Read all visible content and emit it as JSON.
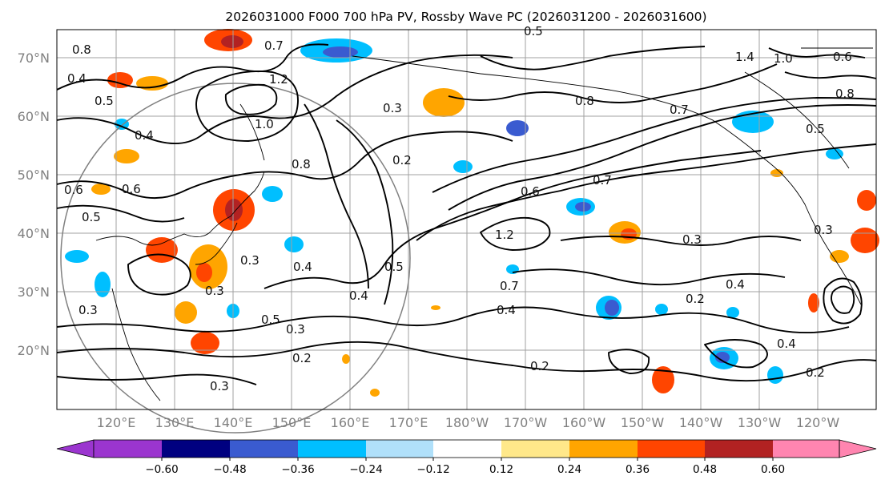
{
  "title": "2026031000 F000 700 hPa PV, Rossby Wave PC (2026031200 - 2026031600)",
  "lat_labels": [
    "70°N",
    "60°N",
    "50°N",
    "40°N",
    "30°N",
    "20°N"
  ],
  "lon_labels": [
    "120°E",
    "130°E",
    "140°E",
    "150°E",
    "160°E",
    "170°E",
    "180°W",
    "170°W",
    "160°W",
    "150°W",
    "140°W",
    "130°W",
    "120°W"
  ],
  "colorbar": {
    "ticks": [
      "−0.60",
      "−0.48",
      "−0.36",
      "−0.24",
      "−0.12",
      "0.12",
      "0.24",
      "0.36",
      "0.48",
      "0.60"
    ],
    "colors": [
      "#9b35cf",
      "#000080",
      "#3a5bd0",
      "#00bfff",
      "#b0e0fa",
      "#ffffff",
      "#ffe88a",
      "#ffa500",
      "#ff4500",
      "#b22222",
      "#ff85b0"
    ]
  },
  "contour_labels": [
    "0.8",
    "0.4",
    "0.5",
    "0.6",
    "0.4",
    "0.5",
    "0.6",
    "1.0",
    "1.2",
    "0.7",
    "0.8",
    "0.3",
    "0.2",
    "0.3",
    "0.4",
    "0.5",
    "0.3",
    "0.4",
    "0.5",
    "0.3",
    "0.2",
    "0.3",
    "1.2",
    "0.6",
    "0.7",
    "0.7",
    "0.4",
    "0.8",
    "0.7",
    "0.5",
    "1.4",
    "1.0",
    "0.6",
    "0.8",
    "0.3",
    "0.2",
    "0.4",
    "0.3",
    "0.4",
    "0.2",
    "0.2",
    "0.3",
    "0.5"
  ]
}
